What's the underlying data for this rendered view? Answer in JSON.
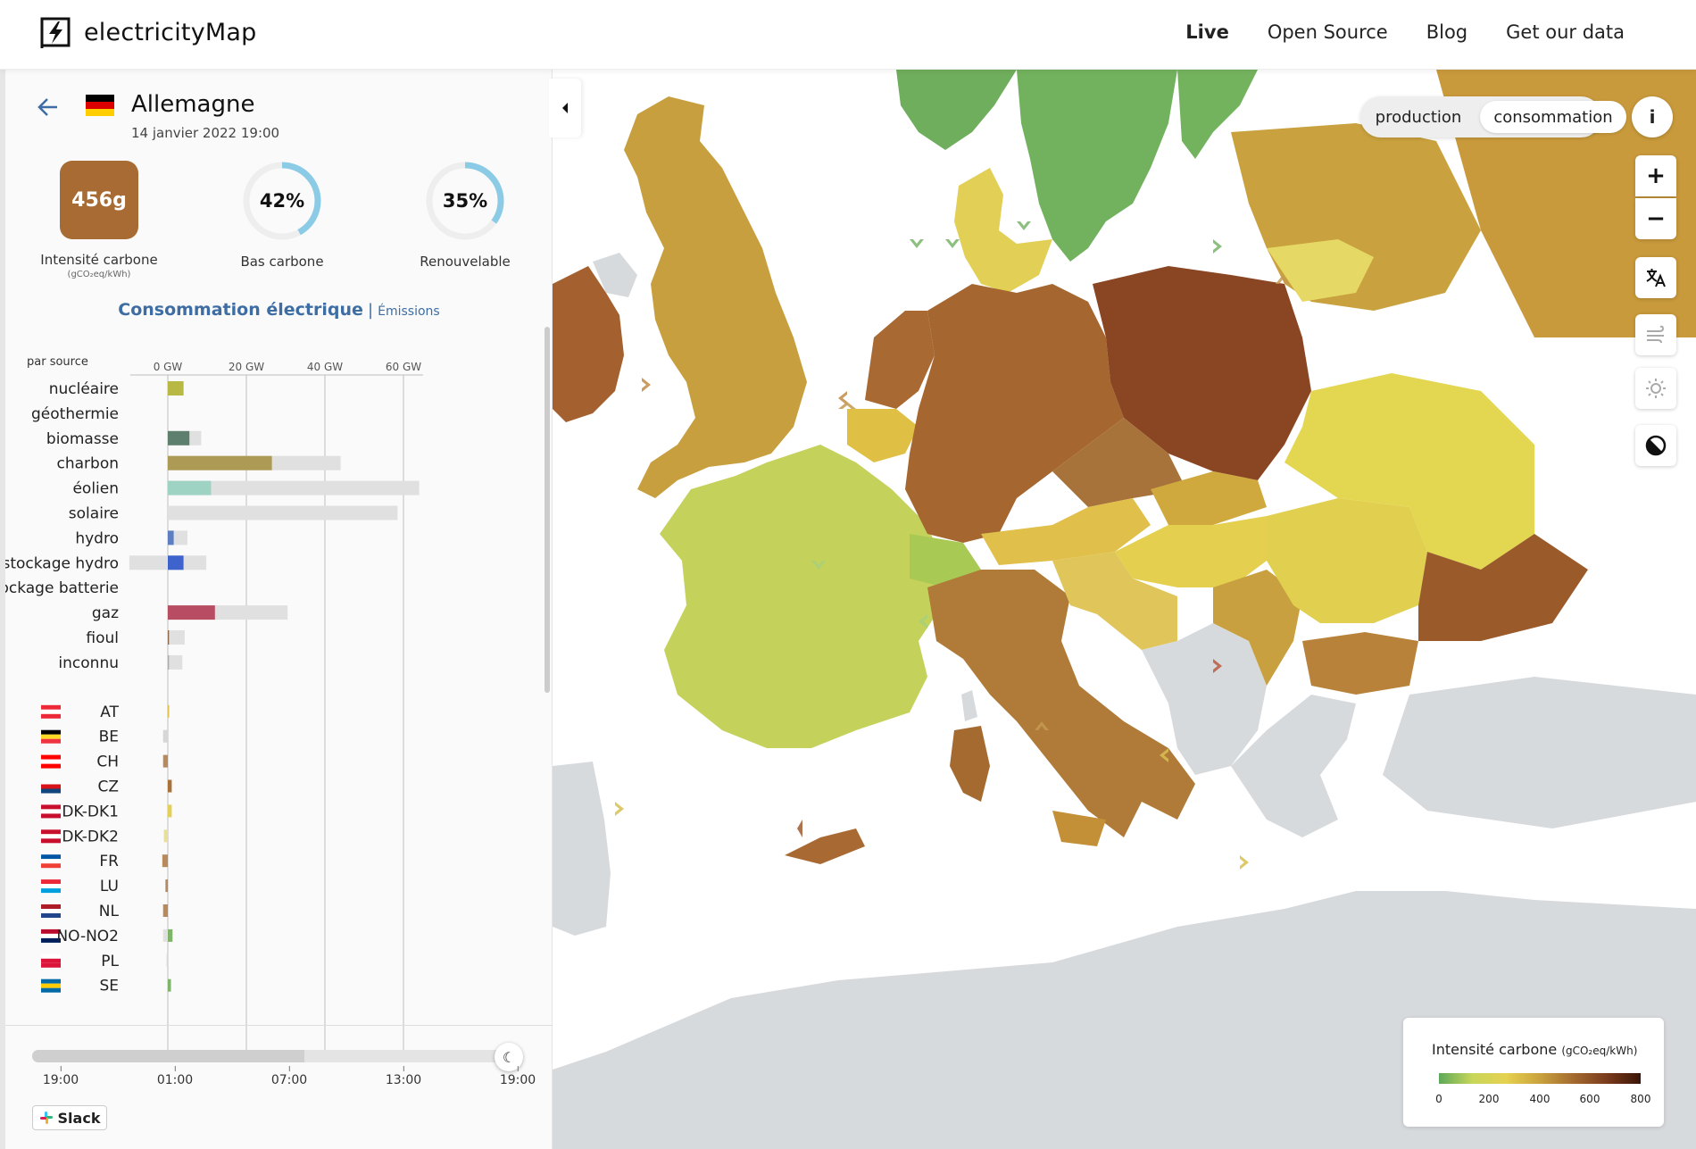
{
  "header": {
    "logo_text": "electricityMap",
    "nav": [
      {
        "label": "Live",
        "active": true
      },
      {
        "label": "Open Source",
        "active": false
      },
      {
        "label": "Blog",
        "active": false
      },
      {
        "label": "Get our data",
        "active": false
      }
    ]
  },
  "zone": {
    "name": "Allemagne",
    "datetime": "14 janvier 2022 19:00",
    "flag_colors": [
      "#000000",
      "#dd0000",
      "#ffce00"
    ]
  },
  "stats": {
    "carbon_intensity": {
      "value": "456g",
      "label": "Intensité carbone",
      "unit": "(gCO₂eq/kWh)",
      "color": "#a76b33"
    },
    "low_carbon": {
      "value": "42%",
      "fraction": 0.42,
      "label": "Bas carbone"
    },
    "renewable": {
      "value": "35%",
      "fraction": 0.35,
      "label": "Renouvelable"
    }
  },
  "tabs": {
    "active": "Consommation électrique",
    "separator": "|",
    "other": "Émissions"
  },
  "chart_data": {
    "type": "bar",
    "title": "par source",
    "xlim": [
      -10,
      65
    ],
    "xticks": [
      0,
      20,
      40,
      60
    ],
    "xtick_labels": [
      "0 GW",
      "20 GW",
      "40 GW",
      "60 GW"
    ],
    "sources": [
      {
        "name": "nucléaire",
        "value": 4.0,
        "capacity": 4.0,
        "color": "#b8b844"
      },
      {
        "name": "géothermie",
        "value": 0,
        "capacity": 0,
        "color": "#c0855a"
      },
      {
        "name": "biomasse",
        "value": 5.5,
        "capacity": 8.5,
        "color": "#5f7f6e"
      },
      {
        "name": "charbon",
        "value": 26.5,
        "capacity": 44,
        "color": "#ad9a55"
      },
      {
        "name": "éolien",
        "value": 11,
        "capacity": 64,
        "color": "#9ed3c3"
      },
      {
        "name": "solaire",
        "value": 0,
        "capacity": 58.5,
        "color": "#f5c842"
      },
      {
        "name": "hydro",
        "value": 1.5,
        "capacity": 5,
        "color": "#5d7fc2"
      },
      {
        "name": "stockage hydro",
        "value": 4.0,
        "capacity": 9.8,
        "capacity_neg": -9.8,
        "color": "#3f63cc"
      },
      {
        "name": "stockage batterie",
        "value": 0,
        "capacity": 0,
        "color": "#a8d77c"
      },
      {
        "name": "gaz",
        "value": 12,
        "capacity": 30.5,
        "color": "#b84c62"
      },
      {
        "name": "fioul",
        "value": 0.3,
        "capacity": 4.3,
        "color": "#8c6a4a"
      },
      {
        "name": "inconnu",
        "value": 0.3,
        "capacity": 3.7,
        "color": "#aaaaaa"
      }
    ],
    "exchanges": [
      {
        "zone": "AT",
        "value": 0.2,
        "color": "#e0c04a",
        "flag": [
          "#ed2939",
          "#ffffff",
          "#ed2939"
        ]
      },
      {
        "zone": "BE",
        "value": -1.2,
        "color": "#d6d6d6",
        "flag": [
          "#000000",
          "#fdda24",
          "#ef3340"
        ]
      },
      {
        "zone": "CH",
        "value": -1.2,
        "color": "#b8895a",
        "flag": [
          "#ff0000",
          "#ffffff",
          "#ff0000"
        ]
      },
      {
        "zone": "CZ",
        "value": 1.0,
        "color": "#a8733a",
        "flag": [
          "#ffffff",
          "#d7141a",
          "#11457e"
        ]
      },
      {
        "zone": "DK-DK1",
        "value": 1.0,
        "color": "#e2d058",
        "flag": [
          "#c8102e",
          "#ffffff",
          "#c8102e"
        ]
      },
      {
        "zone": "DK-DK2",
        "value": -1.0,
        "color": "#e8df9a",
        "flag": [
          "#c8102e",
          "#ffffff",
          "#c8102e"
        ]
      },
      {
        "zone": "FR",
        "value": -1.4,
        "color": "#b8895a",
        "flag": [
          "#0055a4",
          "#ffffff",
          "#ef4135"
        ]
      },
      {
        "zone": "LU",
        "value": -0.6,
        "color": "#b8895a",
        "flag": [
          "#ed2939",
          "#ffffff",
          "#00a1de"
        ]
      },
      {
        "zone": "NL",
        "value": -1.2,
        "color": "#b8895a",
        "flag": [
          "#ae1c28",
          "#ffffff",
          "#21468b"
        ]
      },
      {
        "zone": "NO-NO2",
        "value": 1.2,
        "neg": -1.2,
        "color": "#7fb46b",
        "flag": [
          "#ba0c2f",
          "#ffffff",
          "#00205b"
        ]
      },
      {
        "zone": "PL",
        "value": -0.3,
        "color": "#d6d6d6",
        "flag": [
          "#ffffff",
          "#dc143c",
          "#dc143c"
        ]
      },
      {
        "zone": "SE",
        "value": 0.8,
        "color": "#7fb46b",
        "flag": [
          "#006aa7",
          "#fecc00",
          "#006aa7"
        ]
      }
    ]
  },
  "timeline": {
    "ticks": [
      "19:00",
      "01:00",
      "07:00",
      "13:00",
      "19:00"
    ],
    "position": 1.0,
    "knob_icon": "moon-icon"
  },
  "slack": {
    "label": "Slack"
  },
  "map": {
    "mode_production": "production",
    "mode_consumption": "consommation",
    "mode_active": "consommation",
    "info_label": "i",
    "zoom_in": "+",
    "zoom_out": "−"
  },
  "legend": {
    "title": "Intensité carbone",
    "unit": "(gCO₂eq/kWh)",
    "ticks": [
      "0",
      "200",
      "400",
      "600",
      "800"
    ],
    "gradient": [
      "#5ea95a",
      "#c7d65a",
      "#e6d150",
      "#c9a23e",
      "#a46a30",
      "#7a3a1c",
      "#3a1508"
    ]
  },
  "colors": {
    "accent": "#3e6da3",
    "grid": "#bdbdbd",
    "capacity_bg": "#e0e0e0",
    "no_data": "#d7dadd"
  }
}
